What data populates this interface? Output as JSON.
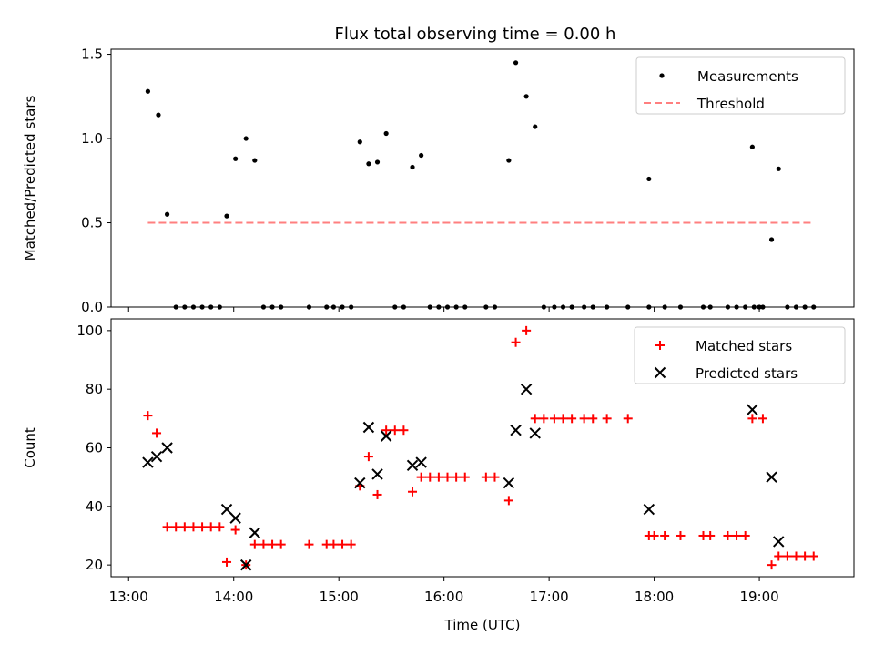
{
  "title": "Flux total observing time = 0.00 h",
  "chart_data": [
    {
      "type": "scatter",
      "ylabel": "Matched/Predicted stars",
      "ylim": [
        0,
        1.53
      ],
      "yticks": [
        0.0,
        0.5,
        1.0,
        1.5
      ],
      "ytick_labels": [
        "0.0",
        "0.5",
        "1.0",
        "1.5"
      ],
      "legend": {
        "placement": "top-right",
        "entries": [
          "Measurements",
          "Threshold"
        ]
      },
      "series": [
        {
          "name": "Measurements",
          "marker": "dot",
          "color": "#000000",
          "points": [
            [
              "13:11",
              1.28
            ],
            [
              "13:17",
              1.14
            ],
            [
              "13:22",
              0.55
            ],
            [
              "13:27",
              0
            ],
            [
              "13:32",
              0
            ],
            [
              "13:37",
              0
            ],
            [
              "13:42",
              0
            ],
            [
              "13:47",
              0
            ],
            [
              "13:52",
              0
            ],
            [
              "13:56",
              0.54
            ],
            [
              "14:01",
              0.88
            ],
            [
              "14:07",
              1.0
            ],
            [
              "14:12",
              0.87
            ],
            [
              "14:17",
              0
            ],
            [
              "14:22",
              0
            ],
            [
              "14:27",
              0
            ],
            [
              "14:43",
              0
            ],
            [
              "14:53",
              0
            ],
            [
              "14:57",
              0
            ],
            [
              "15:02",
              0
            ],
            [
              "15:07",
              0
            ],
            [
              "15:12",
              0.98
            ],
            [
              "15:17",
              0.85
            ],
            [
              "15:22",
              0.86
            ],
            [
              "15:27",
              1.03
            ],
            [
              "15:32",
              0
            ],
            [
              "15:37",
              0
            ],
            [
              "15:42",
              0.83
            ],
            [
              "15:47",
              0.9
            ],
            [
              "15:52",
              0
            ],
            [
              "15:57",
              0
            ],
            [
              "16:02",
              0
            ],
            [
              "16:07",
              0
            ],
            [
              "16:12",
              0
            ],
            [
              "16:24",
              0
            ],
            [
              "16:29",
              0
            ],
            [
              "16:37",
              0.87
            ],
            [
              "16:41",
              1.45
            ],
            [
              "16:47",
              1.25
            ],
            [
              "16:52",
              1.07
            ],
            [
              "16:57",
              0
            ],
            [
              "17:03",
              0
            ],
            [
              "17:08",
              0
            ],
            [
              "17:13",
              0
            ],
            [
              "17:20",
              0
            ],
            [
              "17:25",
              0
            ],
            [
              "17:33",
              0
            ],
            [
              "17:45",
              0
            ],
            [
              "17:57",
              0
            ],
            [
              "17:57",
              0.76
            ],
            [
              "18:06",
              0
            ],
            [
              "18:15",
              0
            ],
            [
              "18:28",
              0
            ],
            [
              "18:32",
              0
            ],
            [
              "18:42",
              0
            ],
            [
              "18:47",
              0
            ],
            [
              "18:52",
              0
            ],
            [
              "18:57",
              0
            ],
            [
              "19:00",
              0
            ],
            [
              "18:56",
              0.95
            ],
            [
              "19:02",
              0
            ],
            [
              "19:07",
              0.4
            ],
            [
              "19:11",
              0.82
            ],
            [
              "19:16",
              0
            ],
            [
              "19:21",
              0
            ],
            [
              "19:26",
              0
            ],
            [
              "19:31",
              0
            ]
          ]
        },
        {
          "name": "Threshold",
          "style": "dashed",
          "color": "#ff7f7f",
          "x": [
            "13:11",
            "19:31"
          ],
          "y": [
            0.5,
            0.5
          ]
        }
      ]
    },
    {
      "type": "scatter",
      "xlabel": "Time (UTC)",
      "ylabel": "Count",
      "ylim": [
        16,
        104
      ],
      "yticks": [
        20,
        40,
        60,
        80,
        100
      ],
      "ytick_labels": [
        "20",
        "40",
        "60",
        "80",
        "100"
      ],
      "xticks": [
        "13:00",
        "14:00",
        "15:00",
        "16:00",
        "17:00",
        "18:00",
        "19:00"
      ],
      "xtick_labels": [
        "13:00",
        "14:00",
        "15:00",
        "16:00",
        "17:00",
        "18:00",
        "19:00"
      ],
      "legend": {
        "placement": "top-right",
        "entries": [
          "Matched stars",
          "Predicted stars"
        ]
      },
      "series": [
        {
          "name": "Matched stars",
          "marker": "plus",
          "color": "#ff0000",
          "points": [
            [
              "13:11",
              71
            ],
            [
              "13:16",
              65
            ],
            [
              "13:22",
              33
            ],
            [
              "13:27",
              33
            ],
            [
              "13:32",
              33
            ],
            [
              "13:37",
              33
            ],
            [
              "13:42",
              33
            ],
            [
              "13:47",
              33
            ],
            [
              "13:52",
              33
            ],
            [
              "13:56",
              21
            ],
            [
              "14:01",
              32
            ],
            [
              "14:07",
              20
            ],
            [
              "14:12",
              27
            ],
            [
              "14:17",
              27
            ],
            [
              "14:22",
              27
            ],
            [
              "14:27",
              27
            ],
            [
              "14:43",
              27
            ],
            [
              "14:53",
              27
            ],
            [
              "14:57",
              27
            ],
            [
              "15:02",
              27
            ],
            [
              "15:07",
              27
            ],
            [
              "15:12",
              47
            ],
            [
              "15:17",
              57
            ],
            [
              "15:22",
              44
            ],
            [
              "15:27",
              66
            ],
            [
              "15:32",
              66
            ],
            [
              "15:37",
              66
            ],
            [
              "15:42",
              45
            ],
            [
              "15:47",
              50
            ],
            [
              "15:52",
              50
            ],
            [
              "15:57",
              50
            ],
            [
              "16:02",
              50
            ],
            [
              "16:07",
              50
            ],
            [
              "16:12",
              50
            ],
            [
              "16:24",
              50
            ],
            [
              "16:29",
              50
            ],
            [
              "16:37",
              42
            ],
            [
              "16:41",
              96
            ],
            [
              "16:47",
              100
            ],
            [
              "16:52",
              70
            ],
            [
              "16:57",
              70
            ],
            [
              "17:03",
              70
            ],
            [
              "17:08",
              70
            ],
            [
              "17:13",
              70
            ],
            [
              "17:20",
              70
            ],
            [
              "17:25",
              70
            ],
            [
              "17:33",
              70
            ],
            [
              "17:45",
              70
            ],
            [
              "17:57",
              30
            ],
            [
              "18:00",
              30
            ],
            [
              "18:06",
              30
            ],
            [
              "18:15",
              30
            ],
            [
              "18:28",
              30
            ],
            [
              "18:32",
              30
            ],
            [
              "18:42",
              30
            ],
            [
              "18:47",
              30
            ],
            [
              "18:52",
              30
            ],
            [
              "18:56",
              70
            ],
            [
              "19:02",
              70
            ],
            [
              "19:07",
              20
            ],
            [
              "19:11",
              23
            ],
            [
              "19:16",
              23
            ],
            [
              "19:21",
              23
            ],
            [
              "19:26",
              23
            ],
            [
              "19:31",
              23
            ]
          ]
        },
        {
          "name": "Predicted stars",
          "marker": "x",
          "color": "#000000",
          "points": [
            [
              "13:11",
              55
            ],
            [
              "13:16",
              57
            ],
            [
              "13:22",
              60
            ],
            [
              "13:56",
              39
            ],
            [
              "14:01",
              36
            ],
            [
              "14:07",
              20
            ],
            [
              "14:12",
              31
            ],
            [
              "15:12",
              48
            ],
            [
              "15:17",
              67
            ],
            [
              "15:22",
              51
            ],
            [
              "15:27",
              64
            ],
            [
              "15:42",
              54
            ],
            [
              "15:47",
              55
            ],
            [
              "16:37",
              48
            ],
            [
              "16:41",
              66
            ],
            [
              "16:47",
              80
            ],
            [
              "16:52",
              65
            ],
            [
              "17:57",
              39
            ],
            [
              "18:56",
              73
            ],
            [
              "19:07",
              50
            ],
            [
              "19:11",
              28
            ]
          ]
        }
      ]
    }
  ]
}
